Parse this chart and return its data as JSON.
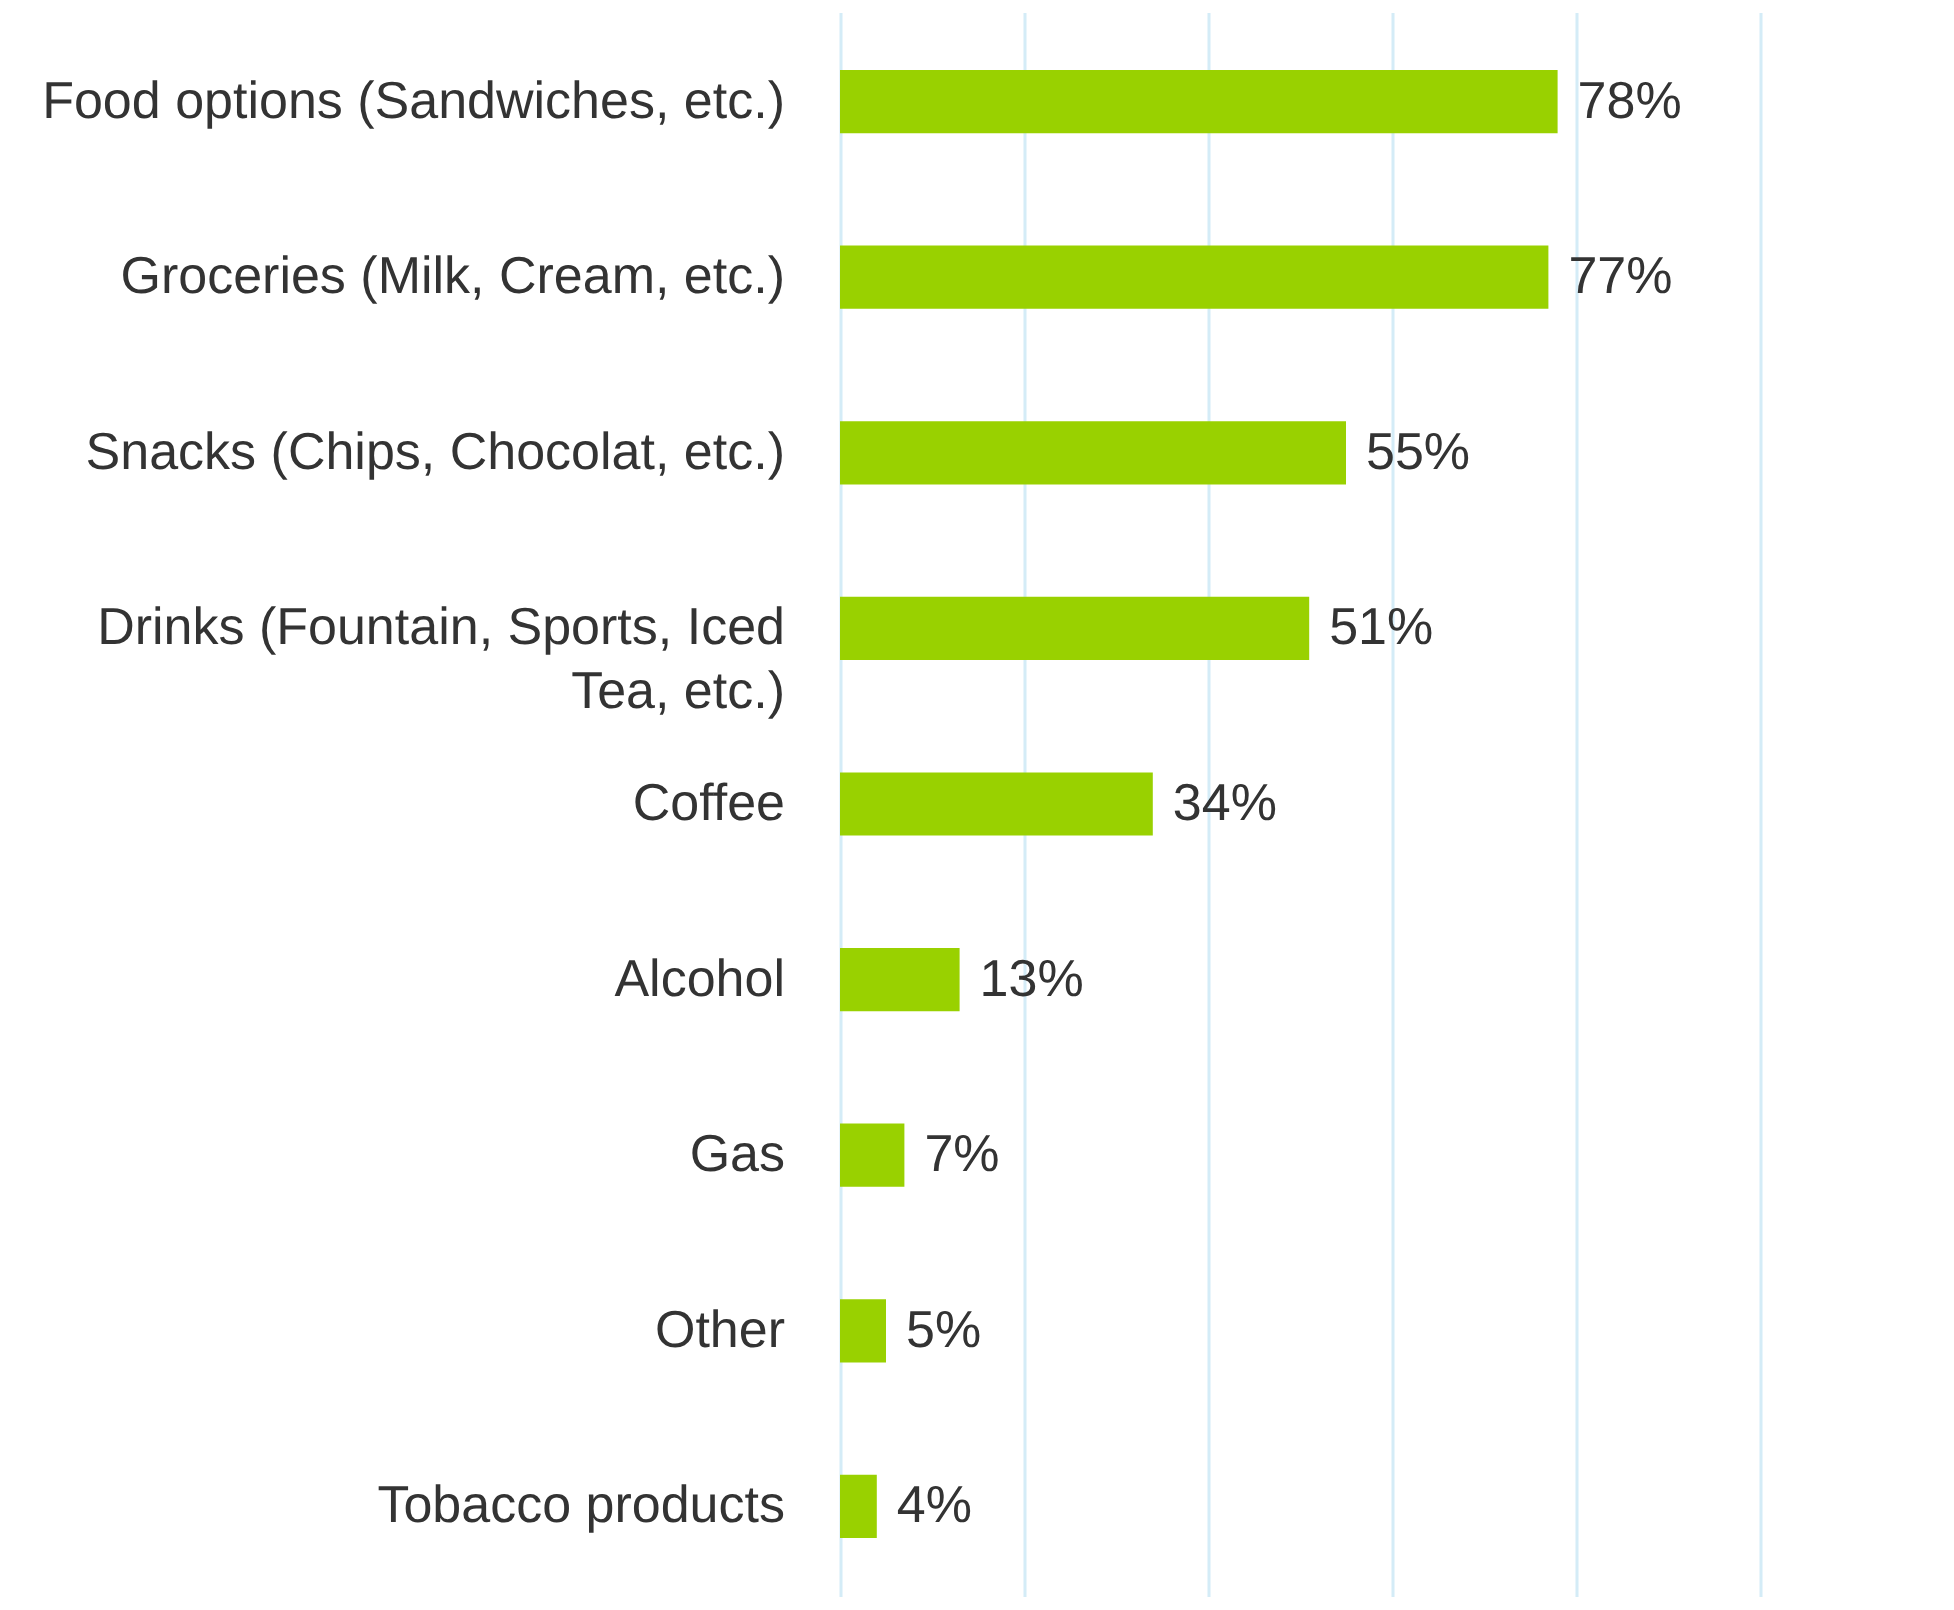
{
  "chart_data": {
    "type": "bar",
    "orientation": "horizontal",
    "categories": [
      "Food options (Sandwiches, etc.)",
      "Groceries (Milk, Cream, etc.)",
      "Snacks (Chips, Chocolat, etc.)",
      "Drinks (Fountain, Sports, Iced Tea, etc.)",
      "Coffee",
      "Alcohol",
      "Gas",
      "Other",
      "Tobacco products"
    ],
    "values": [
      78,
      77,
      55,
      51,
      34,
      13,
      7,
      5,
      4
    ],
    "value_labels": [
      "78%",
      "77%",
      "55%",
      "51%",
      "34%",
      "13%",
      "7%",
      "5%",
      "4%"
    ],
    "color": "#99d100",
    "xlim": [
      0,
      100
    ],
    "xticks": [
      {
        "value": 0,
        "label": null
      },
      {
        "value": 20,
        "label": null
      },
      {
        "value": 40,
        "label": null
      },
      {
        "value": 60,
        "label": null
      },
      {
        "value": 80,
        "label": null
      },
      {
        "value": 100,
        "label": null
      }
    ],
    "grid": "x",
    "tick_labels": "y"
  }
}
